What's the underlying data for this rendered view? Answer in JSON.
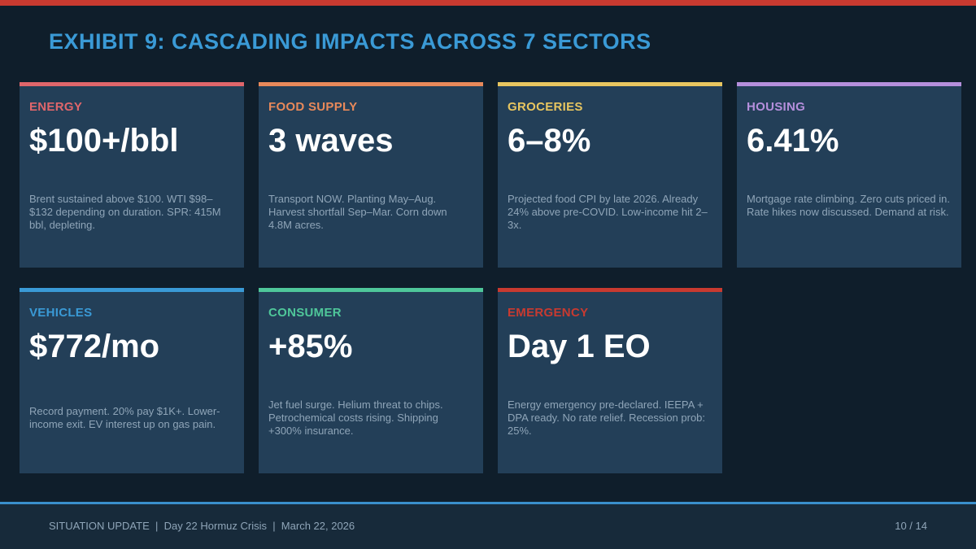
{
  "slide": {
    "title": "EXHIBIT 9: CASCADING IMPACTS ACROSS 7 SECTORS",
    "accent_color": "#c83a30",
    "title_color": "#3a9ad6"
  },
  "cards": [
    {
      "label": "ENERGY",
      "value": "$100+/bbl",
      "desc": "Brent sustained above $100. WTI $98–$132 depending on duration. SPR: 415M bbl, depleting.",
      "color": "#e0666b"
    },
    {
      "label": "FOOD SUPPLY",
      "value": "3 waves",
      "desc": "Transport NOW. Planting May–Aug. Harvest shortfall Sep–Mar. Corn down 4.8M acres.",
      "color": "#e8895a"
    },
    {
      "label": "GROCERIES",
      "value": "6–8%",
      "desc": "Projected food CPI by late 2026. Already 24% above pre-COVID. Low-income hit 2–3x.",
      "color": "#e8c660"
    },
    {
      "label": "HOUSING",
      "value": "6.41%",
      "desc": "Mortgage rate climbing. Zero cuts priced in. Rate hikes now discussed. Demand at risk.",
      "color": "#b58fdc"
    },
    {
      "label": "VEHICLES",
      "value": "$772/mo",
      "desc": "Record payment. 20% pay $1K+. Lower-income exit. EV interest up on gas pain.",
      "color": "#3a9ad6"
    },
    {
      "label": "CONSUMER",
      "value": "+85%",
      "desc": "Jet fuel surge. Helium threat to chips. Petrochemical costs rising. Shipping +300% insurance.",
      "color": "#4fc79a"
    },
    {
      "label": "EMERGENCY",
      "value": "Day 1 EO",
      "desc": "Energy emergency pre-declared. IEEPA + DPA ready. No rate relief. Recession prob: 25%.",
      "color": "#c83a30"
    }
  ],
  "footer": {
    "left": "SITUATION UPDATE  |  Day 22 Hormuz Crisis  |  March 22, 2026",
    "page": "10 / 14"
  }
}
